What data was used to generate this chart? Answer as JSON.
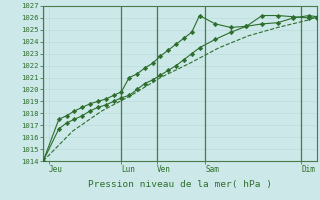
{
  "xlabel": "Pression niveau de la mer( hPa )",
  "bg_color": "#cce8e8",
  "grid_color_minor": "#b8d8d8",
  "grid_color_major": "#90b8b8",
  "line_color": "#2d6e2d",
  "marker_color": "#2d6e2d",
  "ylim": [
    1014,
    1027
  ],
  "xlim": [
    0,
    14
  ],
  "yticks": [
    1014,
    1015,
    1016,
    1017,
    1018,
    1019,
    1020,
    1021,
    1022,
    1023,
    1024,
    1025,
    1026,
    1027
  ],
  "day_tick_positions": [
    0.3,
    4.0,
    5.8,
    8.3,
    13.2
  ],
  "day_labels": [
    "Jeu",
    "Lun",
    "Ven",
    "Sam",
    "Dim"
  ],
  "vline_positions": [
    0,
    4.0,
    5.8,
    8.3,
    13.2
  ],
  "series": [
    {
      "x": [
        0,
        0.8,
        1.2,
        1.6,
        2.0,
        2.4,
        2.8,
        3.2,
        3.6,
        4.0,
        4.4,
        4.8,
        5.2,
        5.6,
        6.0,
        6.4,
        6.8,
        7.2,
        7.6,
        8.0,
        8.8,
        9.6,
        10.4,
        11.2,
        12.0,
        12.8,
        13.6,
        14.0
      ],
      "y": [
        1014.0,
        1016.7,
        1017.2,
        1017.5,
        1017.8,
        1018.2,
        1018.5,
        1018.7,
        1019.0,
        1019.3,
        1019.5,
        1020.0,
        1020.5,
        1020.8,
        1021.2,
        1021.6,
        1022.0,
        1022.5,
        1023.0,
        1023.5,
        1024.2,
        1024.8,
        1025.3,
        1026.2,
        1026.2,
        1026.1,
        1026.0,
        1026.0
      ],
      "has_markers": true,
      "linestyle": "-"
    },
    {
      "x": [
        0,
        0.8,
        1.2,
        1.6,
        2.0,
        2.4,
        2.8,
        3.2,
        3.6,
        4.0,
        4.4,
        4.8,
        5.2,
        5.6,
        6.0,
        6.4,
        6.8,
        7.2,
        7.6,
        8.0,
        8.8,
        9.6,
        10.4,
        11.2,
        12.0,
        12.8,
        13.6,
        14.0
      ],
      "y": [
        1014.0,
        1017.5,
        1017.8,
        1018.2,
        1018.5,
        1018.8,
        1019.0,
        1019.2,
        1019.5,
        1019.8,
        1021.0,
        1021.3,
        1021.8,
        1022.2,
        1022.8,
        1023.3,
        1023.8,
        1024.3,
        1024.8,
        1026.2,
        1025.5,
        1025.2,
        1025.3,
        1025.5,
        1025.6,
        1026.0,
        1026.2,
        1026.1
      ],
      "has_markers": true,
      "linestyle": "-"
    },
    {
      "x": [
        0,
        1.5,
        3.0,
        4.5,
        6.0,
        7.5,
        9.0,
        10.5,
        12.0,
        13.5,
        14.0
      ],
      "y": [
        1014.0,
        1016.5,
        1018.2,
        1019.5,
        1021.0,
        1022.2,
        1023.5,
        1024.5,
        1025.2,
        1025.8,
        1026.1
      ],
      "has_markers": false,
      "linestyle": "--"
    }
  ]
}
